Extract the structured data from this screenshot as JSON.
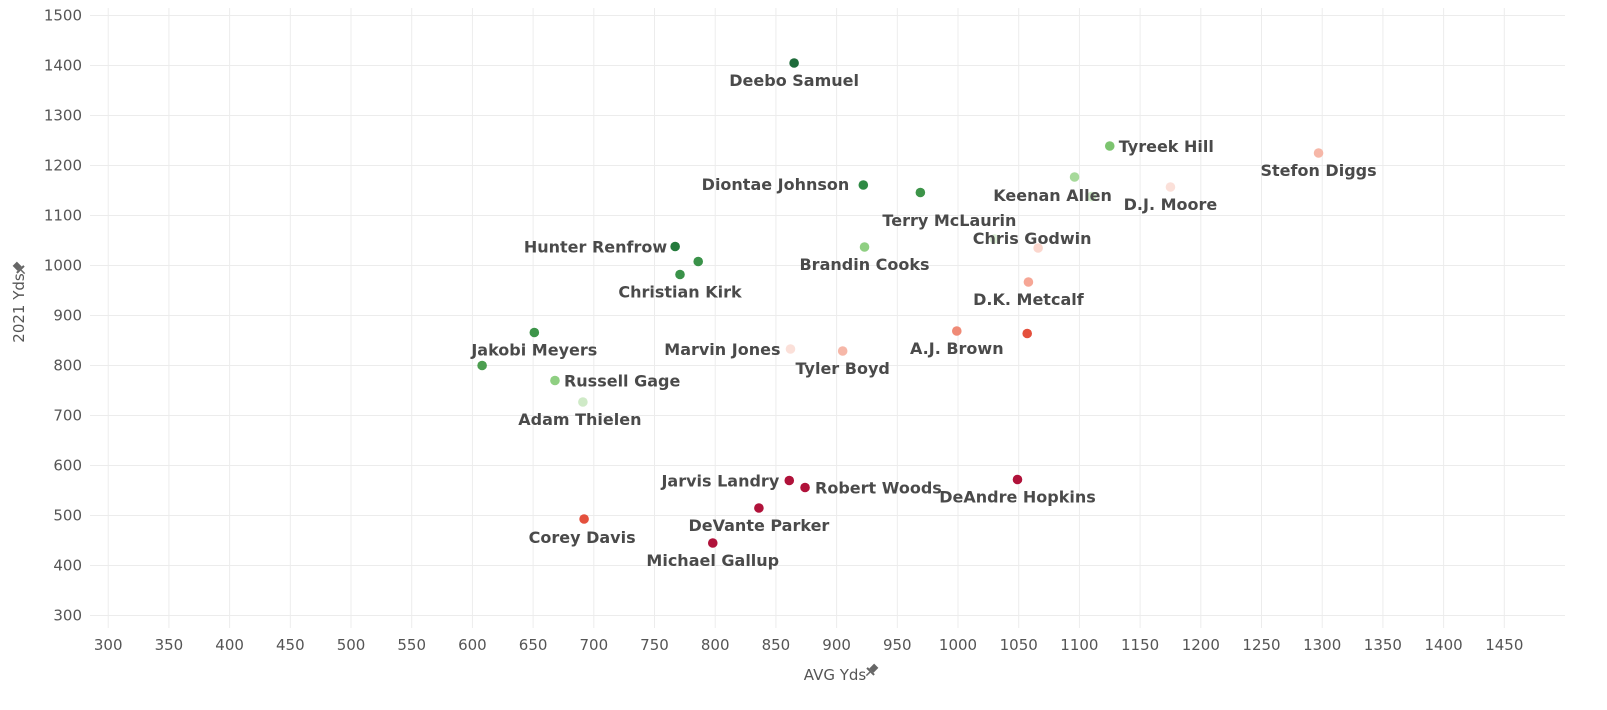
{
  "chart_data": {
    "type": "scatter",
    "xlabel": "AVG Yds",
    "ylabel": "2021 Yds",
    "pin_icon": "pin-icon",
    "xlim": [
      285,
      1500
    ],
    "ylim": [
      275,
      1515
    ],
    "x_ticks": [
      300,
      350,
      400,
      450,
      500,
      550,
      600,
      650,
      700,
      750,
      800,
      850,
      900,
      950,
      1000,
      1050,
      1100,
      1150,
      1200,
      1250,
      1300,
      1350,
      1400,
      1450
    ],
    "y_ticks": [
      300,
      400,
      500,
      600,
      700,
      800,
      900,
      1000,
      1100,
      1200,
      1300,
      1400,
      1500
    ],
    "grid": true,
    "points": [
      {
        "name": "Deebo Samuel",
        "x": 865,
        "y": 1405,
        "color": "#1e6b3a"
      },
      {
        "name": "Tyreek Hill",
        "x": 1125,
        "y": 1239,
        "color": "#7cc46f"
      },
      {
        "name": "Stefon Diggs",
        "x": 1297,
        "y": 1225,
        "color": "#f6b7a8"
      },
      {
        "name": "Diontae Johnson",
        "x": 922,
        "y": 1161,
        "color": "#2f8a45"
      },
      {
        "name": "Keenan Allen",
        "x": 1096,
        "y": 1177,
        "color": "#a6d99a"
      },
      {
        "name": "",
        "x": 969,
        "y": 1146,
        "color": "#3d9449"
      },
      {
        "name": "",
        "x": 1110,
        "y": 1138,
        "color": "#cfeac7"
      },
      {
        "name": "D.J. Moore",
        "x": 1175,
        "y": 1157,
        "color": "#fbe0d9"
      },
      {
        "name": "Terry McLaurin",
        "x": 1030,
        "y": 1053,
        "color": "#dcefd6"
      },
      {
        "name": "Chris Godwin",
        "x": 1066,
        "y": 1035,
        "color": "#fbd6cd"
      },
      {
        "name": "Hunter Renfrow",
        "x": 767,
        "y": 1038,
        "color": "#247a3c"
      },
      {
        "name": "Brandin Cooks",
        "x": 923,
        "y": 1037,
        "color": "#8fcf82"
      },
      {
        "name": "",
        "x": 786,
        "y": 1008,
        "color": "#3a9249"
      },
      {
        "name": "Christian Kirk",
        "x": 771,
        "y": 982,
        "color": "#3a9249"
      },
      {
        "name": "D.K. Metcalf",
        "x": 1058,
        "y": 967,
        "color": "#f6a695"
      },
      {
        "name": "Jakobi Meyers",
        "x": 651,
        "y": 866,
        "color": "#3d9449"
      },
      {
        "name": "A.J. Brown",
        "x": 999,
        "y": 869,
        "color": "#ef8a76"
      },
      {
        "name": "",
        "x": 1057,
        "y": 864,
        "color": "#e4503d"
      },
      {
        "name": "Marvin Jones",
        "x": 862,
        "y": 833,
        "color": "#fbe0d9"
      },
      {
        "name": "Tyler Boyd",
        "x": 905,
        "y": 829,
        "color": "#f6b7a8"
      },
      {
        "name": "",
        "x": 608,
        "y": 800,
        "color": "#4c9e50"
      },
      {
        "name": "Russell Gage",
        "x": 668,
        "y": 770,
        "color": "#8fcf82"
      },
      {
        "name": "Adam Thielen",
        "x": 691,
        "y": 727,
        "color": "#cfeac7"
      },
      {
        "name": "Jarvis Landry",
        "x": 861,
        "y": 570,
        "color": "#b0123a"
      },
      {
        "name": "Robert Woods",
        "x": 874,
        "y": 556,
        "color": "#b0123a"
      },
      {
        "name": "DeAndre Hopkins",
        "x": 1049,
        "y": 572,
        "color": "#b0123a"
      },
      {
        "name": "DeVante Parker",
        "x": 836,
        "y": 515,
        "color": "#b0123a"
      },
      {
        "name": "Corey Davis",
        "x": 692,
        "y": 493,
        "color": "#e4503d"
      },
      {
        "name": "Michael Gallup",
        "x": 798,
        "y": 445,
        "color": "#b0123a"
      }
    ]
  }
}
